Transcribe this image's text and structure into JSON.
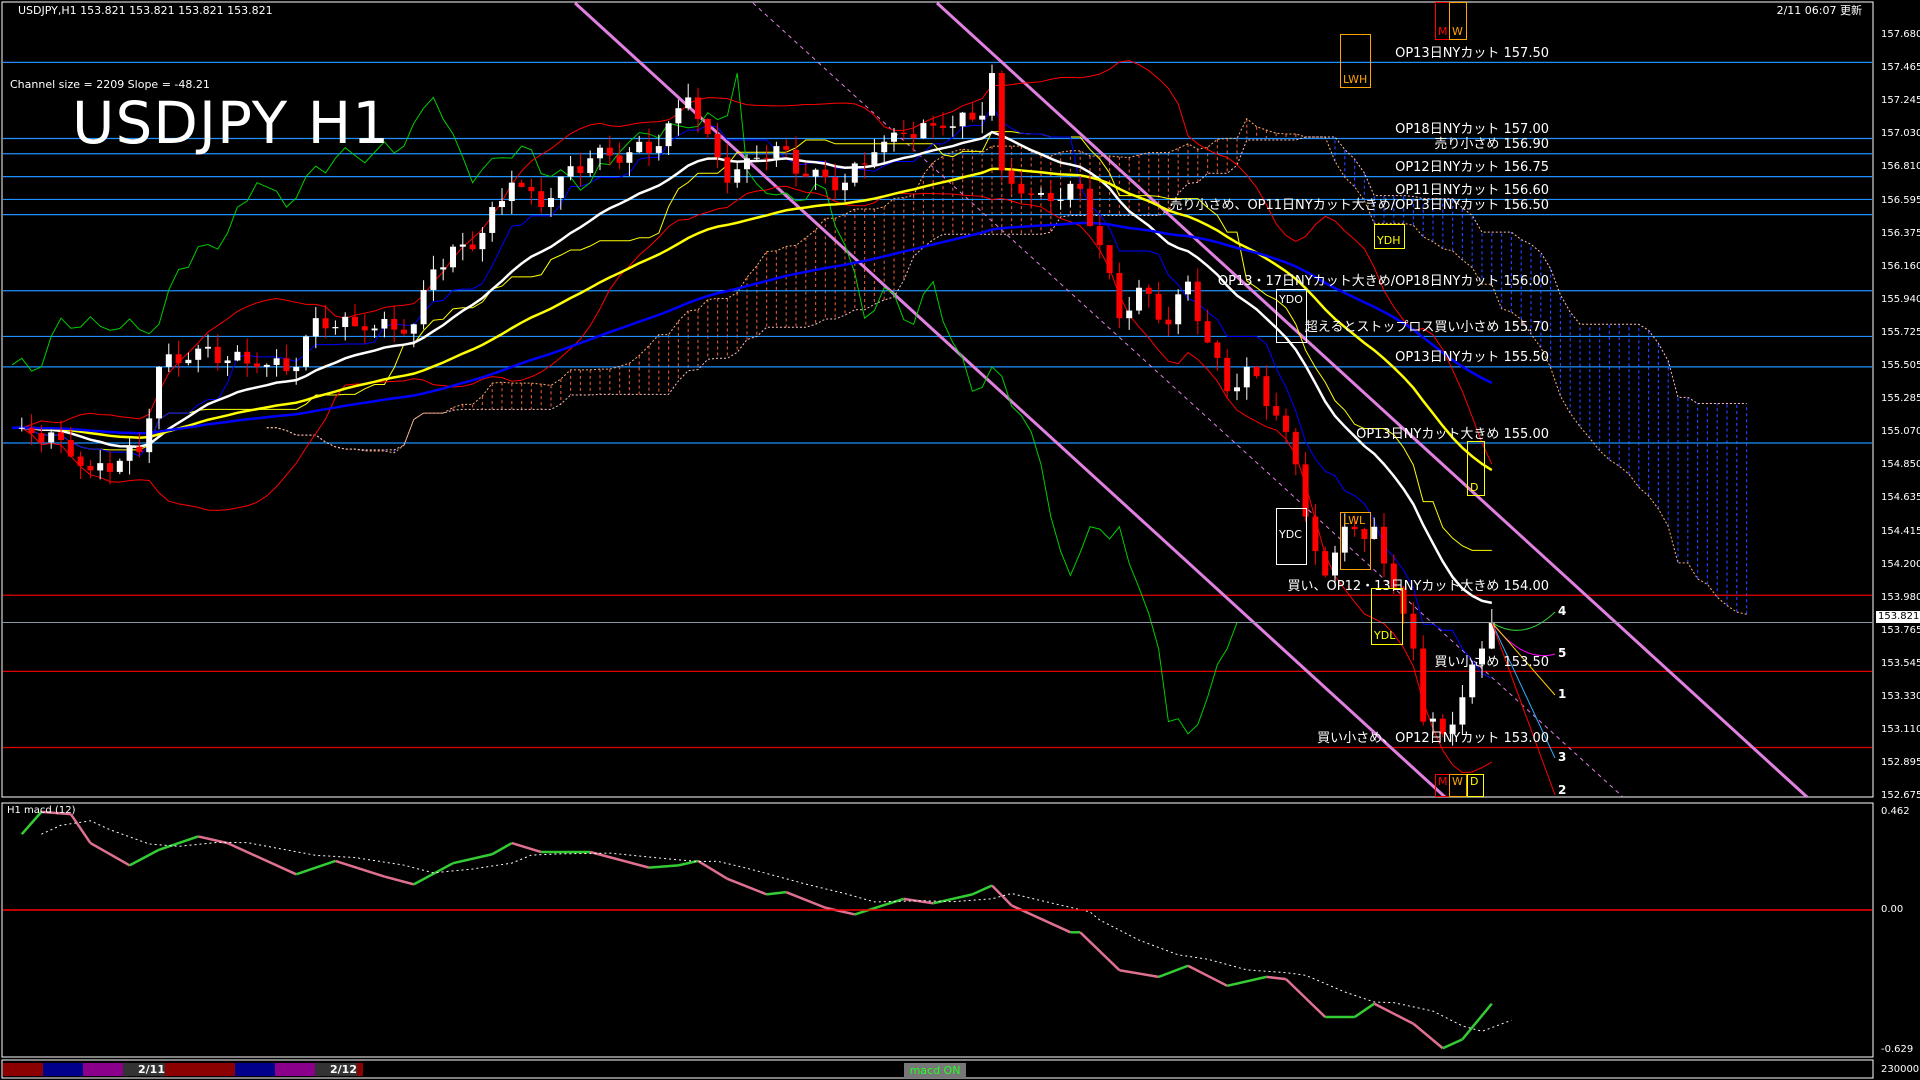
{
  "header": {
    "symbol_line": "USDJPY,H1  153.821 153.821 153.821 153.821",
    "channel_info": "Channel size = 2209 Slope = -48.21",
    "title": "USDJPY H1",
    "updated": "2/11 06:07 更新"
  },
  "price_axis": {
    "ticks": [
      "157.680",
      "157.465",
      "157.245",
      "157.030",
      "156.810",
      "156.595",
      "156.375",
      "156.160",
      "155.940",
      "155.725",
      "155.505",
      "155.285",
      "155.070",
      "154.850",
      "154.635",
      "154.415",
      "154.200",
      "153.980",
      "153.765",
      "153.545",
      "153.330",
      "153.110",
      "152.895",
      "152.675"
    ],
    "current_price": "153.821"
  },
  "levels": [
    {
      "price": 157.5,
      "color": "#1e90ff",
      "label": "OP13日NYカット 157.50"
    },
    {
      "price": 157.0,
      "color": "#1e90ff",
      "label": "OP18日NYカット 157.00"
    },
    {
      "price": 156.9,
      "color": "#1e90ff",
      "label": "売り小さめ 156.90"
    },
    {
      "price": 156.75,
      "color": "#1e90ff",
      "label": "OP12日NYカット 156.75"
    },
    {
      "price": 156.6,
      "color": "#1e90ff",
      "label": "OP11日NYカット 156.60"
    },
    {
      "price": 156.5,
      "color": "#1e90ff",
      "label": "売り小さめ、OP11日NYカット大きめ/OP13日NYカット 156.50"
    },
    {
      "price": 156.0,
      "color": "#1e90ff",
      "label": "OP13・17日NYカット大きめ/OP18日NYカット 156.00"
    },
    {
      "price": 155.7,
      "color": "#1e90ff",
      "label": "超えるとストップロス買い小さめ 155.70"
    },
    {
      "price": 155.5,
      "color": "#1e90ff",
      "label": "OP13日NYカット 155.50"
    },
    {
      "price": 155.0,
      "color": "#1e90ff",
      "label": "OP13日NYカット大きめ 155.00"
    },
    {
      "price": 154.0,
      "color": "#e00000",
      "label": "買い、OP12・13日NYカット大きめ 154.00"
    },
    {
      "price": 153.5,
      "color": "#e00000",
      "label": "買い小さめ 153.50"
    },
    {
      "price": 153.0,
      "color": "#e00000",
      "label": "買い小さめ、OP12日NYカット 153.00"
    }
  ],
  "boxes": {
    "lwh": "LWH",
    "ydh": "YDH",
    "ydo": "YDO",
    "ydc": "YDC",
    "lwl": "LWL",
    "ydl": "YDL",
    "d": "D",
    "top_m": "M",
    "top_w": "W",
    "bot_m": "M",
    "bot_w": "W",
    "bot_d": "D"
  },
  "fan_labels": [
    "4",
    "5",
    "1",
    "3",
    "2"
  ],
  "colors": {
    "bull": "#ffffff",
    "bear": "#ff0000",
    "ema_fast": "#ffffff",
    "ema_mid": "#ffff00",
    "ema_slow": "#0000ff",
    "channel": "#e080e0",
    "cloud_up": "#d05030",
    "cloud_down": "#2040ff",
    "macd_up": "#33cc33",
    "macd_down": "#e07090"
  },
  "chart_data": [
    {
      "type": "candlestick",
      "title": "USDJPY H1",
      "ylim": [
        152.675,
        157.68
      ],
      "x_unit": "bar (H1)",
      "close_path": [
        [
          1,
          155.1
        ],
        [
          5,
          155.02
        ],
        [
          8,
          154.82
        ],
        [
          13,
          154.94
        ],
        [
          15,
          155.5
        ],
        [
          19,
          155.62
        ],
        [
          25,
          155.5
        ],
        [
          29,
          155.5
        ],
        [
          31,
          155.82
        ],
        [
          36,
          155.74
        ],
        [
          41,
          155.78
        ],
        [
          43,
          156.14
        ],
        [
          48,
          156.38
        ],
        [
          51,
          156.71
        ],
        [
          54,
          156.55
        ],
        [
          56,
          156.75
        ],
        [
          59,
          156.87
        ],
        [
          63,
          156.91
        ],
        [
          66,
          156.95
        ],
        [
          69,
          157.27
        ],
        [
          71,
          157.03
        ],
        [
          73,
          156.71
        ],
        [
          75,
          156.87
        ],
        [
          78,
          156.95
        ],
        [
          81,
          156.75
        ],
        [
          85,
          156.71
        ],
        [
          88,
          156.91
        ],
        [
          91,
          157.03
        ],
        [
          95,
          157.07
        ],
        [
          99,
          157.15
        ],
        [
          100,
          157.43
        ],
        [
          101,
          156.79
        ],
        [
          104,
          156.63
        ],
        [
          106,
          156.59
        ],
        [
          109,
          156.67
        ],
        [
          111,
          156.3
        ],
        [
          113,
          155.82
        ],
        [
          115,
          156.02
        ],
        [
          118,
          155.78
        ],
        [
          120,
          156.06
        ],
        [
          122,
          155.66
        ],
        [
          124,
          155.34
        ],
        [
          126,
          155.5
        ],
        [
          129,
          155.18
        ],
        [
          131,
          154.86
        ],
        [
          133,
          154.29
        ],
        [
          134,
          154.13
        ],
        [
          136,
          154.45
        ],
        [
          138,
          154.37
        ],
        [
          139,
          154.45
        ],
        [
          141,
          154.05
        ],
        [
          143,
          153.65
        ],
        [
          144,
          153.17
        ],
        [
          146,
          153.09
        ],
        [
          148,
          153.33
        ],
        [
          150,
          153.65
        ],
        [
          151,
          153.821
        ]
      ]
    },
    {
      "type": "line",
      "title": "H1  macd (12)",
      "ylim": [
        -0.629,
        0.462
      ],
      "zero_line": 0.0,
      "ticks": [
        "0.462",
        "0.00",
        "-0.629"
      ],
      "volume_label": "230000",
      "macd": [
        [
          1,
          0.34
        ],
        [
          3,
          0.44
        ],
        [
          6,
          0.43
        ],
        [
          8,
          0.3
        ],
        [
          12,
          0.2
        ],
        [
          15,
          0.27
        ],
        [
          19,
          0.33
        ],
        [
          22,
          0.3
        ],
        [
          29,
          0.16
        ],
        [
          33,
          0.22
        ],
        [
          38,
          0.15
        ],
        [
          41,
          0.115
        ],
        [
          45,
          0.21
        ],
        [
          49,
          0.25
        ],
        [
          51,
          0.3
        ],
        [
          54,
          0.26
        ],
        [
          59,
          0.26
        ],
        [
          65,
          0.19
        ],
        [
          68,
          0.2
        ],
        [
          70,
          0.22
        ],
        [
          73,
          0.14
        ],
        [
          77,
          0.07
        ],
        [
          79,
          0.08
        ],
        [
          83,
          0.01
        ],
        [
          86,
          -0.02
        ],
        [
          91,
          0.05
        ],
        [
          94,
          0.03
        ],
        [
          98,
          0.07
        ],
        [
          100,
          0.11
        ],
        [
          102,
          0.02
        ],
        [
          108,
          -0.1
        ],
        [
          109,
          -0.1
        ],
        [
          113,
          -0.27
        ],
        [
          117,
          -0.3
        ],
        [
          120,
          -0.25
        ],
        [
          124,
          -0.34
        ],
        [
          128,
          -0.3
        ],
        [
          130,
          -0.31
        ],
        [
          134,
          -0.48
        ],
        [
          137,
          -0.48
        ],
        [
          139,
          -0.42
        ],
        [
          143,
          -0.51
        ],
        [
          146,
          -0.62
        ],
        [
          148,
          -0.58
        ],
        [
          151,
          -0.42
        ]
      ]
    }
  ],
  "bottom_bar": {
    "date1": "2/11",
    "date2": "2/12",
    "macd_toggle": "macd ON"
  }
}
